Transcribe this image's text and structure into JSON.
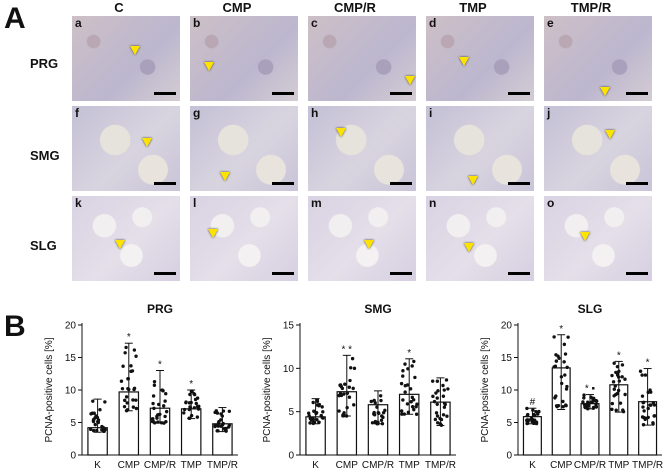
{
  "figure": {
    "panel_a_label": "A",
    "panel_b_label": "B",
    "column_headers": [
      "C",
      "CMP",
      "CMP/R",
      "TMP",
      "TMP/R"
    ],
    "row_headers": [
      "PRG",
      "SMG",
      "SLG"
    ],
    "tile_letters": [
      [
        "a",
        "b",
        "c",
        "d",
        "e"
      ],
      [
        "f",
        "g",
        "h",
        "i",
        "j"
      ],
      [
        "k",
        "l",
        "m",
        "n",
        "o"
      ]
    ]
  },
  "chart_data": [
    {
      "type": "bar",
      "title": "PRG",
      "ylabel": "PCNA-positive cells [%]",
      "xlabel": "",
      "categories": [
        "K",
        "CMP",
        "CMP/R",
        "TMP",
        "TMP/R"
      ],
      "values": [
        4.2,
        9.7,
        7.2,
        7.1,
        4.8
      ],
      "error_low": [
        3.5,
        6.8,
        4.9,
        5.6,
        3.6
      ],
      "error_high": [
        8.6,
        17.2,
        13.0,
        10.0,
        7.3
      ],
      "annotations": [
        "",
        "*",
        "*",
        "*",
        ""
      ],
      "ylim": [
        0,
        20
      ],
      "yticks": [
        0,
        5,
        10,
        15,
        20
      ],
      "grid": false
    },
    {
      "type": "bar",
      "title": "SMG",
      "ylabel": "PCNA-positive cells [%]",
      "xlabel": "",
      "categories": [
        "K",
        "CMP",
        "CMP/R",
        "TMP",
        "TMP/R"
      ],
      "values": [
        4.4,
        7.3,
        5.8,
        7.0,
        6.1
      ],
      "error_low": [
        3.6,
        4.5,
        3.6,
        4.7,
        3.4
      ],
      "error_high": [
        6.5,
        11.5,
        7.4,
        11.1,
        8.9
      ],
      "annotations": [
        "",
        "* *",
        "",
        "*",
        ""
      ],
      "ylim": [
        0,
        15
      ],
      "yticks": [
        0,
        5,
        10,
        15
      ],
      "grid": false
    },
    {
      "type": "bar",
      "title": "SLG",
      "ylabel": "PCNA-positive cells [%]",
      "xlabel": "",
      "categories": [
        "K",
        "CMP",
        "CMP/R",
        "TMP",
        "TMP/R"
      ],
      "values": [
        5.9,
        13.4,
        7.9,
        10.8,
        8.2
      ],
      "error_low": [
        4.8,
        7.0,
        7.1,
        6.6,
        4.6
      ],
      "error_high": [
        7.2,
        18.5,
        9.3,
        14.4,
        13.3
      ],
      "annotations": [
        "#",
        "*",
        "* ▪",
        "*",
        "*"
      ],
      "ylim": [
        0,
        20
      ],
      "yticks": [
        0,
        5,
        10,
        15,
        20
      ],
      "grid": false
    }
  ]
}
